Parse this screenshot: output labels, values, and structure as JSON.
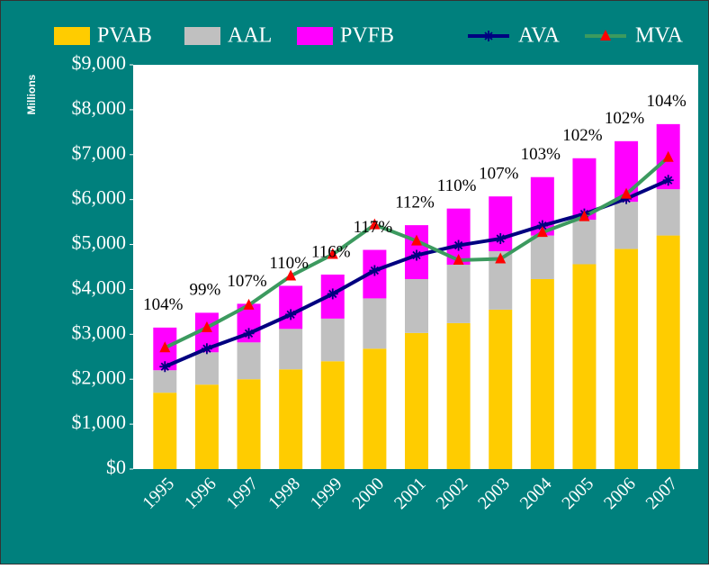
{
  "chart_data": {
    "type": "bar",
    "stacked": true,
    "y_axis_label": "Millions",
    "categories": [
      "1995",
      "1996",
      "1997",
      "1998",
      "1999",
      "2000",
      "2001",
      "2002",
      "2003",
      "2004",
      "2005",
      "2006",
      "2007"
    ],
    "series": [
      {
        "name": "PVAB",
        "type": "bar",
        "color": "#ffcc00",
        "values": [
          1700,
          1880,
          2000,
          2220,
          2400,
          2680,
          3030,
          3250,
          3550,
          4230,
          4560,
          4900,
          5200
        ]
      },
      {
        "name": "AAL",
        "type": "bar",
        "color": "#c0c0c0",
        "values": [
          500,
          720,
          820,
          900,
          950,
          1120,
          1200,
          1300,
          1300,
          970,
          990,
          1050,
          1030
        ]
      },
      {
        "name": "PVFB",
        "type": "bar",
        "color": "#ff00ff",
        "values": [
          950,
          880,
          860,
          960,
          980,
          1080,
          1200,
          1250,
          1220,
          1300,
          1370,
          1350,
          1450
        ]
      },
      {
        "name": "AVA",
        "type": "line",
        "color": "#000080",
        "marker": "star",
        "values": [
          2280,
          2680,
          3020,
          3440,
          3900,
          4420,
          4760,
          4980,
          5130,
          5420,
          5680,
          6020,
          6430
        ]
      },
      {
        "name": "MVA",
        "type": "line",
        "color": "#3c9a5f",
        "marker": "triangle",
        "marker_color": "#ff0000",
        "values": [
          2700,
          3150,
          3650,
          4300,
          4780,
          5440,
          5080,
          4650,
          4680,
          5270,
          5620,
          6120,
          6940
        ]
      }
    ],
    "annotations": [
      "104%",
      "99%",
      "107%",
      "110%",
      "116%",
      "117%",
      "112%",
      "110%",
      "107%",
      "103%",
      "102%",
      "102%",
      "104%"
    ],
    "ylim": [
      0,
      9000
    ],
    "yticks": [
      {
        "value": 0,
        "label": "$0"
      },
      {
        "value": 1000,
        "label": "$1,000"
      },
      {
        "value": 2000,
        "label": "$2,000"
      },
      {
        "value": 3000,
        "label": "$3,000"
      },
      {
        "value": 4000,
        "label": "$4,000"
      },
      {
        "value": 5000,
        "label": "$5,000"
      },
      {
        "value": 6000,
        "label": "$6,000"
      },
      {
        "value": 7000,
        "label": "$7,000"
      },
      {
        "value": 8000,
        "label": "$8,000"
      },
      {
        "value": 9000,
        "label": "$9,000"
      }
    ],
    "background": "#00807d",
    "plot_background": "#ffffff",
    "text_color": "#ffffff",
    "legend": "top"
  }
}
